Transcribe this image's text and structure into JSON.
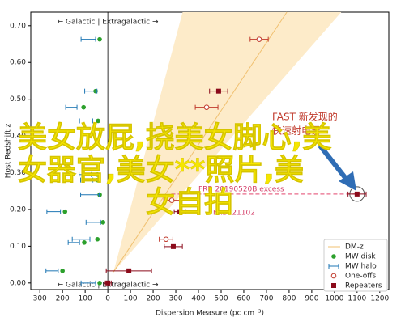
{
  "chart_data": {
    "type": "scatter",
    "xlabel": "Dispersion Measure (pc cm⁻³)",
    "ylabel": "Host Redshift z",
    "region_label": "← Galactic | Extragalactic →",
    "xlim": [
      -340,
      1240
    ],
    "ylim": [
      -0.018,
      0.737
    ],
    "xticks": [
      {
        "value": -300,
        "label": "300"
      },
      {
        "value": -200,
        "label": "200"
      },
      {
        "value": -100,
        "label": "100"
      },
      0,
      100,
      200,
      300,
      400,
      500,
      600,
      700,
      800,
      900,
      1000,
      1100,
      1200
    ],
    "yticks": [
      {
        "value": 0,
        "label": "0.00"
      },
      {
        "value": 0.1,
        "label": "0.10"
      },
      {
        "value": 0.2,
        "label": "0.20"
      },
      {
        "value": 0.3,
        "label": "0.30"
      },
      {
        "value": 0.4,
        "label": "0.40"
      },
      {
        "value": 0.5,
        "label": "0.50"
      },
      {
        "value": 0.6,
        "label": "0.60"
      },
      {
        "value": 0.7,
        "label": "0.70"
      }
    ],
    "dmz": {
      "name": "DM-z",
      "color": "#f0c070",
      "fill": "#fdebc9",
      "band_x": [
        25,
        330,
        1030
      ],
      "band_y": [
        0.03,
        0.737,
        0.737
      ],
      "line_x": [
        25,
        790
      ],
      "line_y": [
        0.03,
        0.737
      ]
    },
    "series": [
      {
        "name": "MW disk",
        "color": "#2ca02c",
        "marker": "dot",
        "x": [
          -36,
          -54,
          -107,
          -43,
          -46,
          -46,
          -36,
          -189,
          -21,
          -46,
          -104,
          -200,
          -36
        ],
        "y": [
          0.663,
          0.522,
          0.478,
          0.441,
          0.295,
          0.28,
          0.24,
          0.194,
          0.165,
          0.119,
          0.11,
          0.033,
          0
        ]
      },
      {
        "name": "MW halo",
        "color": "#1f77b4",
        "marker": "bar",
        "x": [
          -86,
          -75,
          -161,
          -96,
          -100,
          -93,
          -79,
          -239,
          -64,
          -118,
          -150,
          -246,
          -86
        ],
        "xerr": [
          32,
          27,
          25,
          29,
          27,
          27,
          41,
          30,
          32,
          39,
          25,
          27,
          32
        ],
        "y": [
          0.663,
          0.522,
          0.478,
          0.441,
          0.295,
          0.28,
          0.24,
          0.194,
          0.165,
          0.119,
          0.11,
          0.033,
          0
        ]
      },
      {
        "name": "One-offs",
        "color": "#c0392b",
        "marker": "ring",
        "x": [
          668,
          436,
          282,
          257
        ],
        "xerr": [
          40,
          50,
          35,
          30
        ],
        "y": [
          0.663,
          0.478,
          0.225,
          0.119
        ]
      },
      {
        "name": "Repeaters",
        "color": "#8b0a1a",
        "marker": "square",
        "x": [
          489,
          318,
          289,
          93,
          0,
          1100
        ],
        "xerr": [
          40,
          25,
          40,
          100,
          15,
          40
        ],
        "y": [
          0.522,
          0.194,
          0.099,
          0.033,
          0,
          0.242
        ]
      }
    ],
    "annotations": {
      "fast": [
        "FAST 新发现的",
        "快速射电暴"
      ],
      "excess": "FRB 20190520B excess",
      "frb121102": "FRB121102"
    },
    "overlay_lines": [
      "美女放屁,挠美女脚心,美",
      "女器官,美女**照片,美",
      "女自拍"
    ]
  }
}
